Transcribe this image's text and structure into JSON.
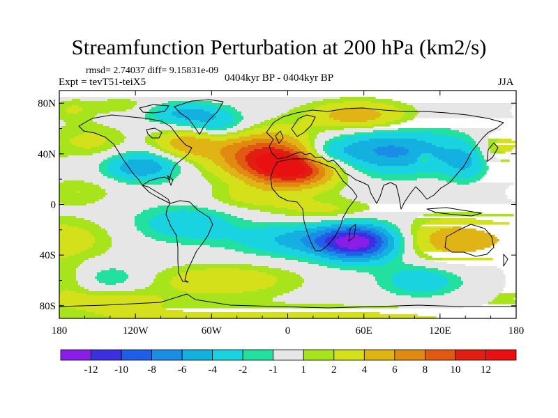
{
  "header": {
    "title": "Streamfunction Perturbation at 200 hPa (km2/s)",
    "stats": "rmsd= 2.74037 diff= 9.15831e-09",
    "experiment": "Expt = tevT51-teiX5",
    "period": "0404kyr BP - 0404kyr BP",
    "season": "JJA"
  },
  "colors": {
    "background": "#ffffff",
    "neutral": "#e6e6e6",
    "coastline": "#000000"
  },
  "chart_data": {
    "type": "heatmap",
    "title": "Streamfunction Perturbation at 200 hPa (km2/s)",
    "xlabel": "",
    "ylabel": "",
    "xlim": [
      -180,
      180
    ],
    "ylim": [
      -90,
      90
    ],
    "x_ticks": [
      {
        "value": -180,
        "label": "180"
      },
      {
        "value": -120,
        "label": "120W"
      },
      {
        "value": -60,
        "label": "60W"
      },
      {
        "value": 0,
        "label": "0"
      },
      {
        "value": 60,
        "label": "60E"
      },
      {
        "value": 120,
        "label": "120E"
      },
      {
        "value": 180,
        "label": "180"
      }
    ],
    "y_ticks": [
      {
        "value": 80,
        "label": "80N"
      },
      {
        "value": 40,
        "label": "40N"
      },
      {
        "value": 0,
        "label": "0"
      },
      {
        "value": -40,
        "label": "40S"
      },
      {
        "value": -80,
        "label": "80S"
      }
    ],
    "colorbar": {
      "levels": [
        -12,
        -10,
        -8,
        -6,
        -4,
        -2,
        -1,
        1,
        2,
        4,
        6,
        8,
        10,
        12
      ],
      "labels": [
        "-12",
        "-10",
        "-8",
        "-6",
        "-4",
        "-2",
        "-1",
        "1",
        "2",
        "4",
        "6",
        "8",
        "10",
        "12"
      ],
      "colors": [
        "#8a1ee8",
        "#3c2fe0",
        "#1f5ee6",
        "#1a8ee6",
        "#13b0e0",
        "#19d4e0",
        "#22e0a0",
        "#e6e6e6",
        "#a8e41c",
        "#d4e01a",
        "#e0b414",
        "#e08a12",
        "#e05a12",
        "#e01e12",
        "#e81010"
      ]
    },
    "field_centers": [
      {
        "lon": -18,
        "lat": 40,
        "value": 9.5,
        "sx": 30,
        "sy": 13
      },
      {
        "lon": 5,
        "lat": 27,
        "value": 10.5,
        "sx": 24,
        "sy": 10
      },
      {
        "lon": 55,
        "lat": 70,
        "value": 5.5,
        "sx": 28,
        "sy": 8
      },
      {
        "lon": -80,
        "lat": 48,
        "value": 5,
        "sx": 18,
        "sy": 8
      },
      {
        "lon": -115,
        "lat": 30,
        "value": -6,
        "sx": 20,
        "sy": 8
      },
      {
        "lon": -80,
        "lat": 72,
        "value": -4.5,
        "sx": 22,
        "sy": 6
      },
      {
        "lon": -55,
        "lat": 62,
        "value": -3.5,
        "sx": 18,
        "sy": 7
      },
      {
        "lon": 80,
        "lat": 42,
        "value": -6.5,
        "sx": 38,
        "sy": 12
      },
      {
        "lon": 28,
        "lat": 40,
        "value": -3.5,
        "sx": 15,
        "sy": 7
      },
      {
        "lon": 108,
        "lat": 36,
        "value": 3,
        "sx": 4,
        "sy": 3
      },
      {
        "lon": 140,
        "lat": 33,
        "value": -3.5,
        "sx": 12,
        "sy": 10
      },
      {
        "lon": 165,
        "lat": 45,
        "value": 2.5,
        "sx": 12,
        "sy": 10
      },
      {
        "lon": -155,
        "lat": 50,
        "value": 2.5,
        "sx": 20,
        "sy": 10
      },
      {
        "lon": -170,
        "lat": 75,
        "value": 2,
        "sx": 12,
        "sy": 6
      },
      {
        "lon": -130,
        "lat": 78,
        "value": 1.8,
        "sx": 18,
        "sy": 5
      },
      {
        "lon": -165,
        "lat": 10,
        "value": 2,
        "sx": 20,
        "sy": 8
      },
      {
        "lon": -30,
        "lat": 5,
        "value": 2.2,
        "sx": 25,
        "sy": 7
      },
      {
        "lon": 55,
        "lat": -30,
        "value": -12,
        "sx": 22,
        "sy": 10
      },
      {
        "lon": 10,
        "lat": -28,
        "value": -4.5,
        "sx": 35,
        "sy": 9
      },
      {
        "lon": -80,
        "lat": -15,
        "value": -3.5,
        "sx": 28,
        "sy": 10
      },
      {
        "lon": -50,
        "lat": -60,
        "value": 3.5,
        "sx": 40,
        "sy": 9
      },
      {
        "lon": 30,
        "lat": -5,
        "value": 2.5,
        "sx": 30,
        "sy": 7
      },
      {
        "lon": -170,
        "lat": -28,
        "value": 2.5,
        "sx": 25,
        "sy": 12
      },
      {
        "lon": 130,
        "lat": -28,
        "value": 5.5,
        "sx": 28,
        "sy": 12
      },
      {
        "lon": -140,
        "lat": -75,
        "value": 2.5,
        "sx": 35,
        "sy": 6
      },
      {
        "lon": 105,
        "lat": -60,
        "value": -3.5,
        "sx": 22,
        "sy": 9
      },
      {
        "lon": -138,
        "lat": -58,
        "value": -2,
        "sx": 18,
        "sy": 8
      },
      {
        "lon": 0,
        "lat": -90,
        "value": 2.5,
        "sx": 180,
        "sy": 8
      },
      {
        "lon": -175,
        "lat": -60,
        "value": 1.8,
        "sx": 12,
        "sy": 10
      }
    ]
  }
}
